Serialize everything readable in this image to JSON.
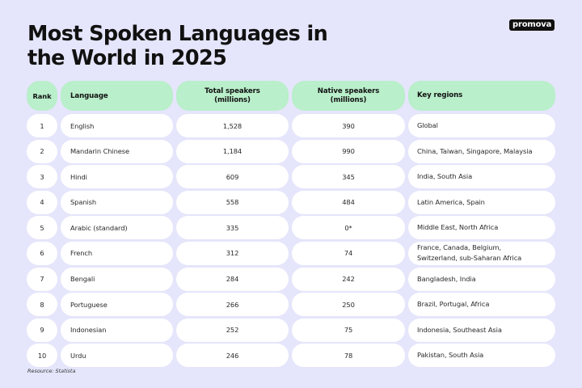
{
  "header": {
    "title": "Most Spoken Languages in the World in 2025",
    "logo": "promova"
  },
  "table": {
    "columns": [
      {
        "key": "rank",
        "label": "Rank"
      },
      {
        "key": "language",
        "label": "Language"
      },
      {
        "key": "total",
        "label": "Total speakers\n(millions)"
      },
      {
        "key": "native",
        "label": "Native speakers\n(millions)"
      },
      {
        "key": "regions",
        "label": "Key regions"
      }
    ],
    "rows": [
      {
        "rank": "1",
        "language": "English",
        "total": "1,528",
        "native": "390",
        "regions": "Global"
      },
      {
        "rank": "2",
        "language": "Mandarin Chinese",
        "total": "1,184",
        "native": "990",
        "regions": "China, Taiwan, Singapore, Malaysia"
      },
      {
        "rank": "3",
        "language": "Hindi",
        "total": "609",
        "native": "345",
        "regions": "India, South Asia"
      },
      {
        "rank": "4",
        "language": "Spanish",
        "total": "558",
        "native": "484",
        "regions": "Latin America, Spain"
      },
      {
        "rank": "5",
        "language": "Arabic (standard)",
        "total": "335",
        "native": "0*",
        "regions": "Middle East, North Africa"
      },
      {
        "rank": "6",
        "language": "French",
        "total": "312",
        "native": "74",
        "regions": "France, Canada, Belgium,\nSwitzerland, sub-Saharan Africa"
      },
      {
        "rank": "7",
        "language": "Bengali",
        "total": "284",
        "native": "242",
        "regions": "Bangladesh, India"
      },
      {
        "rank": "8",
        "language": "Portuguese",
        "total": "266",
        "native": "250",
        "regions": "Brazil, Portugal, Africa"
      },
      {
        "rank": "9",
        "language": "Indonesian",
        "total": "252",
        "native": "75",
        "regions": "Indonesia, Southeast Asia"
      },
      {
        "rank": "10",
        "language": "Urdu",
        "total": "246",
        "native": "78",
        "regions": "Pakistan, South Asia"
      }
    ]
  },
  "footer": {
    "source": "Resource: Statista"
  },
  "colors": {
    "background": "#e5e5fb",
    "header_cell": "#b9efca",
    "body_cell": "#ffffff",
    "text": "#111111",
    "logo_bg": "#111111"
  }
}
